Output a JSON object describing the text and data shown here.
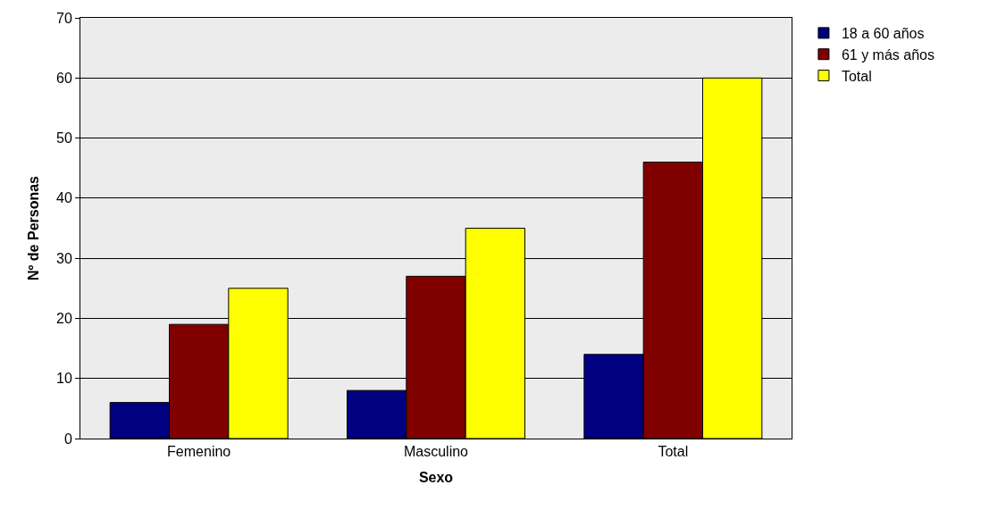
{
  "chart_data": {
    "type": "bar",
    "xlabel": "Sexo",
    "ylabel": "Nº de Personas",
    "categories": [
      "Femenino",
      "Masculino",
      "Total"
    ],
    "series": [
      {
        "name": "18 a 60 años",
        "color": "#000080",
        "values": [
          6,
          8,
          14
        ]
      },
      {
        "name": "61 y más años",
        "color": "#800000",
        "values": [
          19,
          27,
          46
        ]
      },
      {
        "name": "Total",
        "color": "#ffff00",
        "values": [
          25,
          35,
          60
        ]
      }
    ],
    "ylim": [
      0,
      70
    ],
    "yticks": [
      0,
      10,
      20,
      30,
      40,
      50,
      60,
      70
    ],
    "grid": "y",
    "legend": "top right"
  }
}
